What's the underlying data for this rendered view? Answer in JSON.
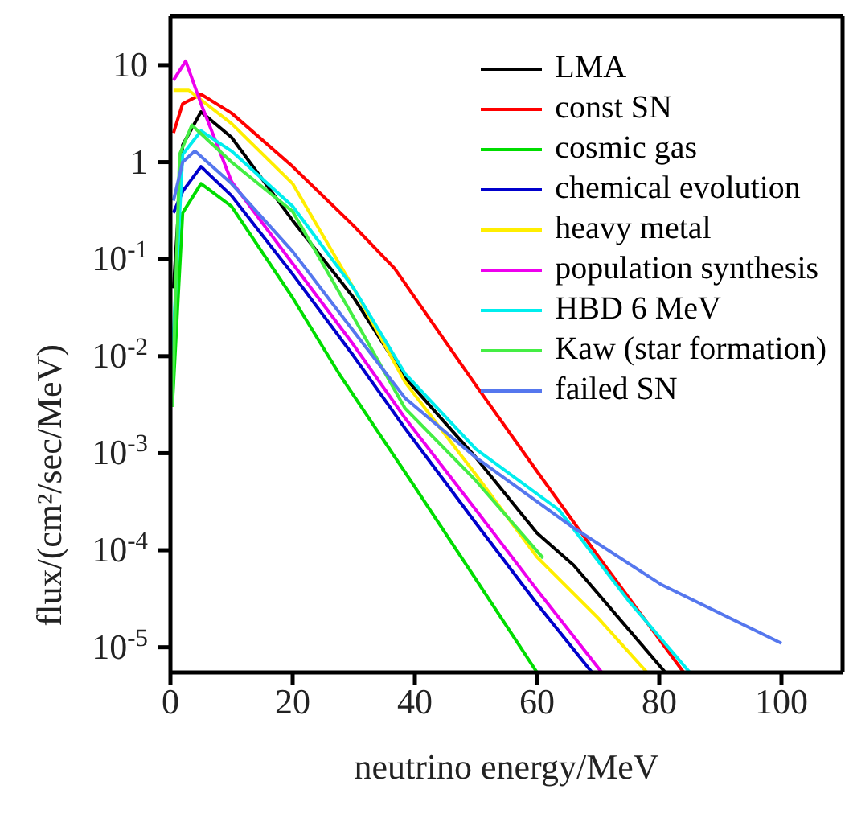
{
  "chart_data": {
    "type": "line",
    "xlabel": "neutrino energy/MeV",
    "ylabel": "flux/(cm²/sec/MeV)",
    "log": "y",
    "legend": "top right",
    "marker": "none",
    "line_style": "solid",
    "xlim": [
      0,
      110
    ],
    "xticks": [
      0,
      20,
      40,
      60,
      80,
      100
    ],
    "ylim": [
      5.5e-06,
      32
    ],
    "yticks": [
      {
        "value": 10,
        "label": "10"
      },
      {
        "value": 1,
        "label": "1"
      },
      {
        "value": 0.1,
        "label": "10$^{-1}$"
      },
      {
        "value": 0.01,
        "label": "10$^{-2}$"
      },
      {
        "value": 0.001,
        "label": "10$^{-3}$"
      },
      {
        "value": 0.0001,
        "label": "10$^{-4}$"
      },
      {
        "value": 1e-05,
        "label": "10$^{-5}$"
      }
    ],
    "series": [
      {
        "name": "LMA",
        "color": "#000000",
        "x": [
          0.5,
          2,
          5,
          10,
          20,
          30,
          38.4,
          50,
          60,
          66,
          81
        ],
        "values": [
          0.05,
          1.5,
          3.3,
          1.8,
          0.25,
          0.04,
          0.006,
          0.0009,
          0.00015,
          7e-05,
          5.5e-06
        ]
      },
      {
        "name": "const SN",
        "color": "#ff0000",
        "x": [
          0.5,
          2,
          5,
          10,
          20,
          30,
          36.7,
          50,
          60,
          70,
          84
        ],
        "values": [
          2,
          4,
          5,
          3.2,
          0.9,
          0.22,
          0.08,
          0.005,
          0.00065,
          8.7e-05,
          5.5e-06
        ]
      },
      {
        "name": "cosmic gas",
        "color": "#00dd00",
        "x": [
          0.3,
          2,
          5,
          10,
          20,
          27.6,
          40,
          50,
          60
        ],
        "values": [
          0.003,
          0.3,
          0.6,
          0.35,
          0.04,
          0.0066,
          0.00045,
          5e-05,
          5.5e-06
        ]
      },
      {
        "name": "chemical evolution",
        "color": "#0000cc",
        "x": [
          0.5,
          2,
          5,
          10,
          20,
          30,
          38.4,
          50,
          60,
          69
        ],
        "values": [
          0.3,
          0.5,
          0.9,
          0.45,
          0.07,
          0.01,
          0.0018,
          0.00019,
          2.8e-05,
          5.5e-06
        ]
      },
      {
        "name": "heavy metal",
        "color": "#ffee00",
        "x": [
          0.5,
          3,
          10,
          20,
          30,
          38.4,
          50,
          60,
          70,
          78
        ],
        "values": [
          5.5,
          5.5,
          2.5,
          0.6,
          0.05,
          0.0054,
          0.0006,
          8.5e-05,
          2e-05,
          5.5e-06
        ]
      },
      {
        "name": "population synthesis",
        "color": "#ee00ee",
        "x": [
          0.5,
          2.5,
          5,
          10,
          20,
          30,
          38.4,
          50,
          60,
          70.6
        ],
        "values": [
          7,
          11,
          4,
          0.63,
          0.09,
          0.013,
          0.0023,
          0.00026,
          3.9e-05,
          5.5e-06
        ]
      },
      {
        "name": "HBD 6 MeV",
        "color": "#00eeee",
        "x": [
          0.3,
          2,
          5,
          10,
          20,
          30,
          38.4,
          50,
          63.6,
          75,
          85
        ],
        "values": [
          0.01,
          1.2,
          2.1,
          1.3,
          0.35,
          0.05,
          0.0066,
          0.0011,
          0.00026,
          3e-05,
          5.5e-06
        ]
      },
      {
        "name": "Kaw (star formation)",
        "color": "#44ee44",
        "x": [
          0.3,
          1.5,
          3.5,
          10,
          20,
          30,
          38.4,
          50,
          61
        ],
        "values": [
          0.003,
          1.2,
          2.4,
          1,
          0.31,
          0.025,
          0.0029,
          0.00052,
          8.3e-05
        ]
      },
      {
        "name": "failed SN",
        "color": "#5577ee",
        "x": [
          0.5,
          2,
          4,
          10,
          20,
          30,
          38.4,
          50,
          66,
          80.4,
          100
        ],
        "values": [
          0.4,
          1,
          1.3,
          0.6,
          0.12,
          0.018,
          0.0037,
          0.0009,
          0.00017,
          4.4e-05,
          1.1e-05
        ]
      }
    ]
  }
}
